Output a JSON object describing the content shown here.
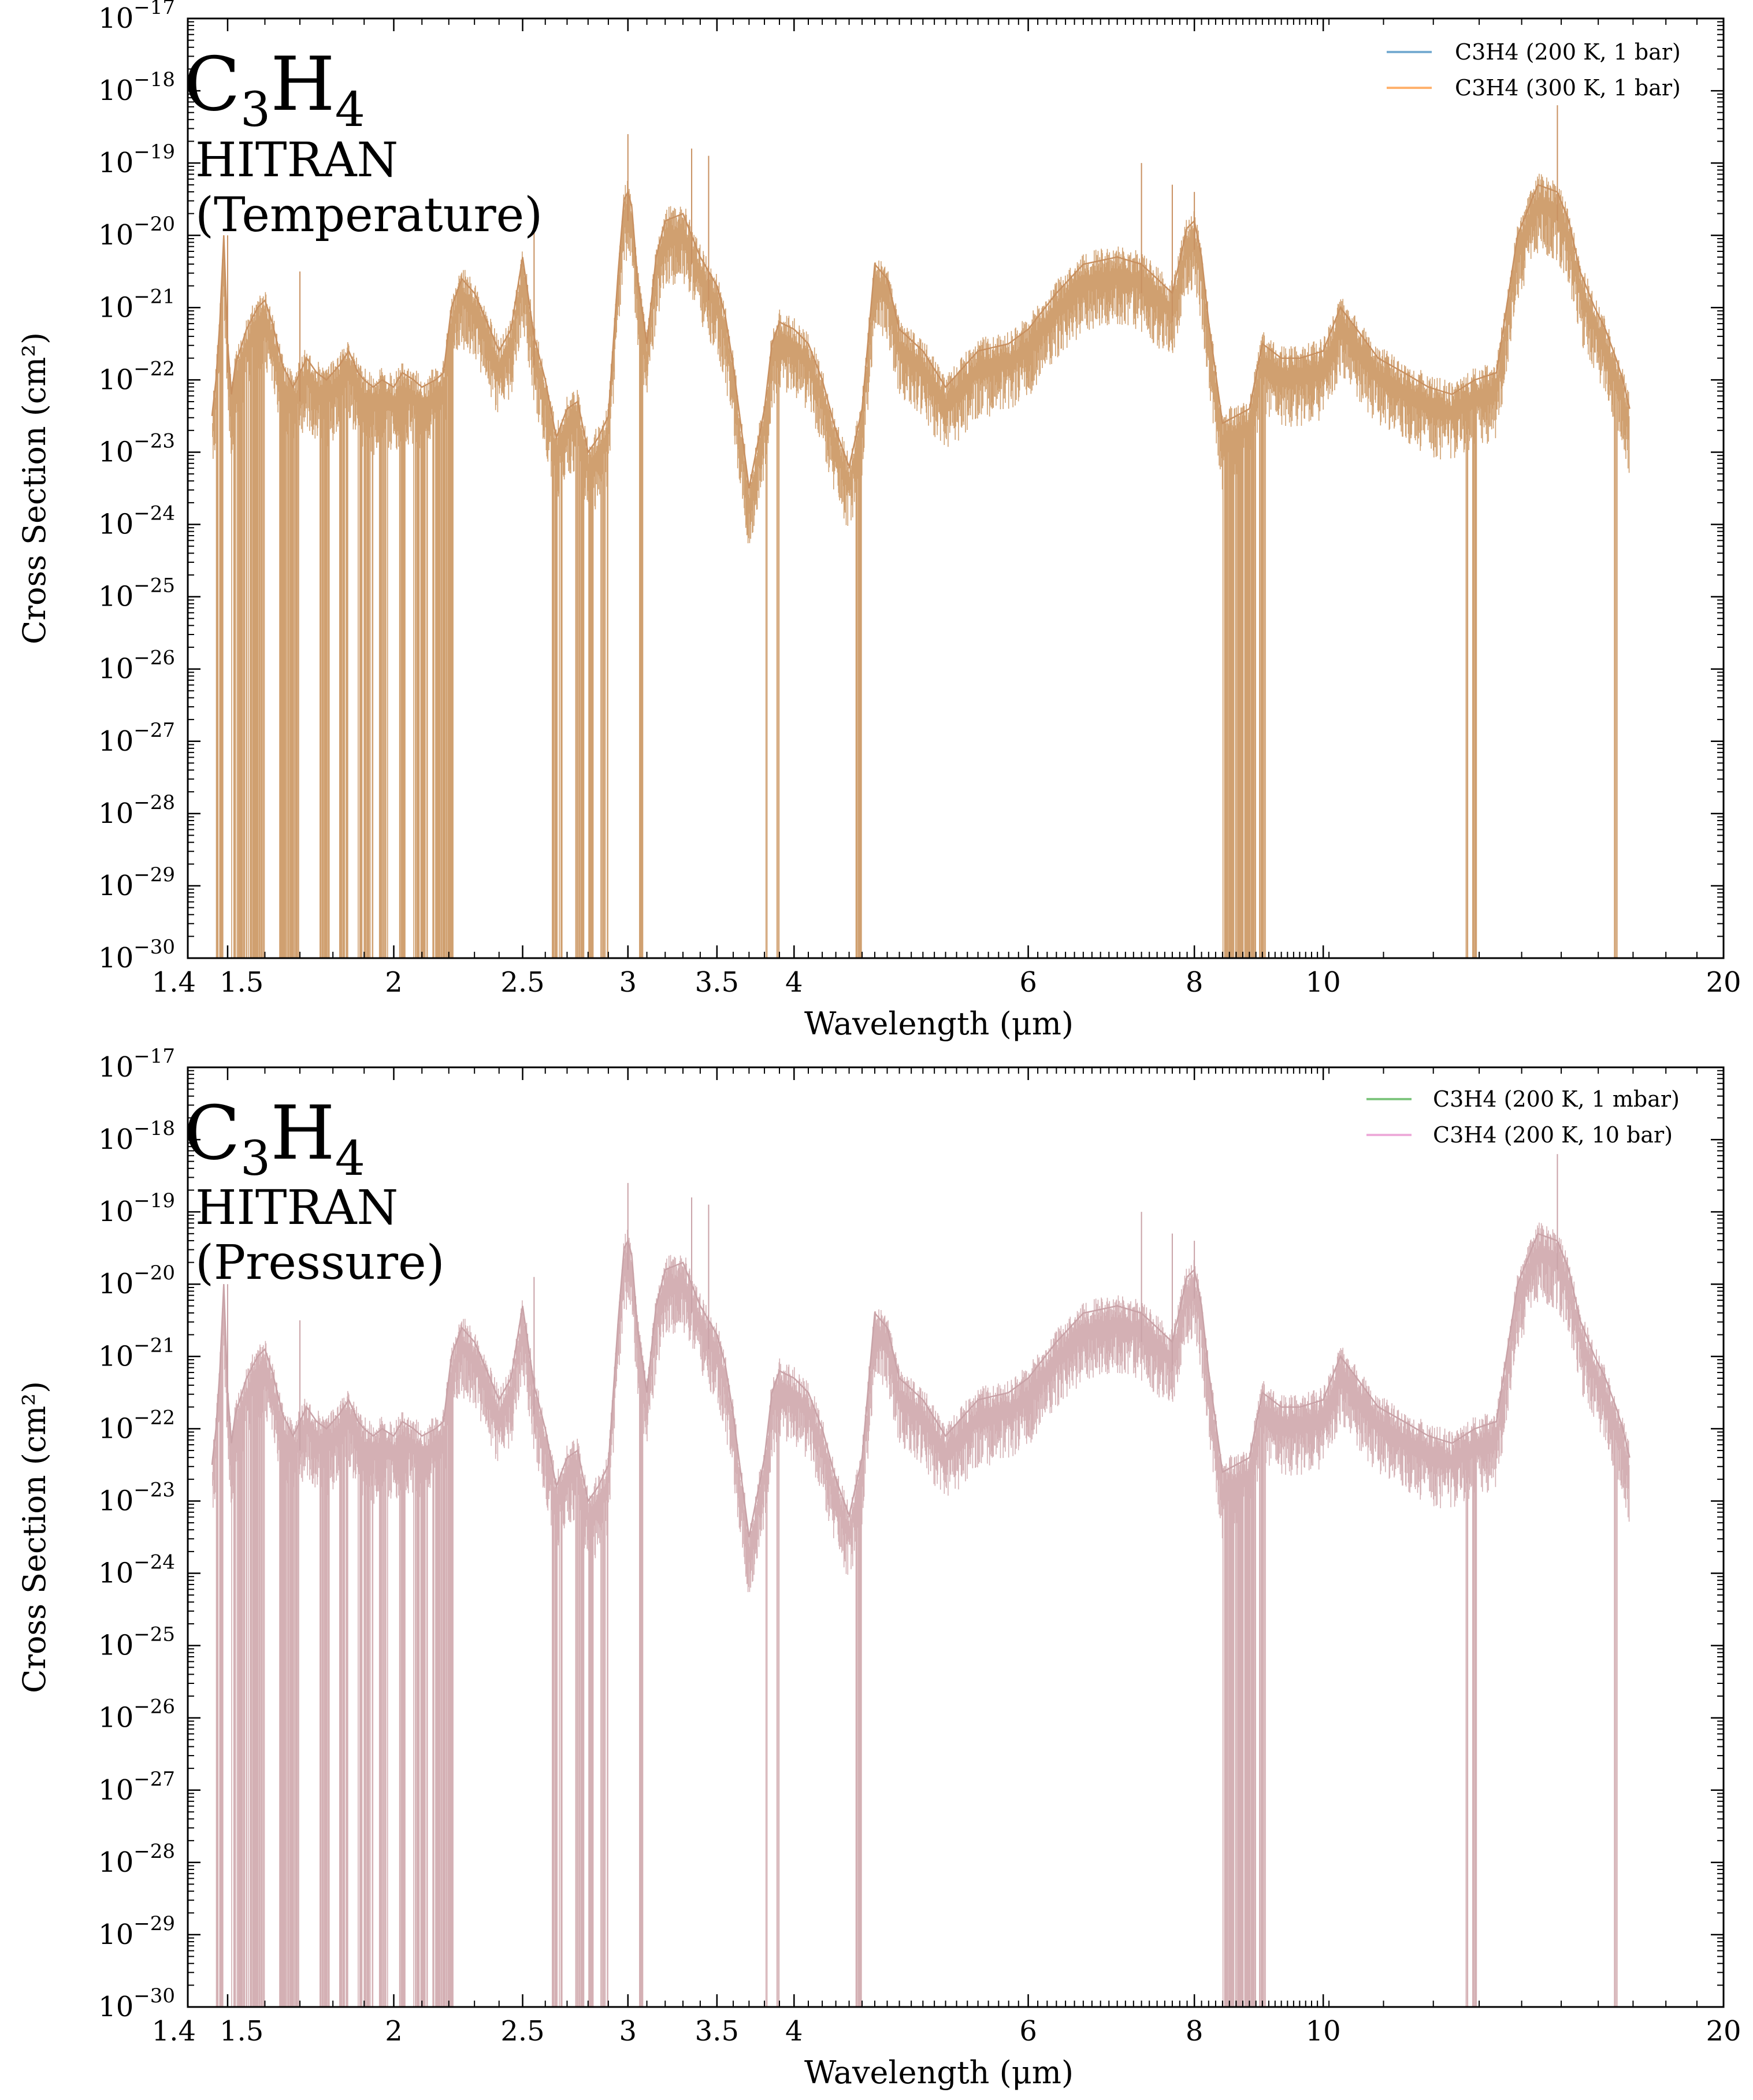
{
  "chart_data": [
    {
      "type": "line",
      "annotation": {
        "molecule_base": "C",
        "subscript_1": "3",
        "molecule_mid": "H",
        "subscript_2": "4",
        "line1": "HITRAN",
        "line2": "(Temperature)"
      },
      "xlabel": "Wavelength (μm)",
      "ylabel": "Cross Section (cm²)",
      "xscale": "log",
      "yscale": "log",
      "xlim": [
        1.4,
        20
      ],
      "ylim": [
        1e-30,
        1e-17
      ],
      "xticks": [
        1.4,
        1.5,
        2,
        2.5,
        3,
        3.5,
        4,
        6,
        8,
        10,
        20
      ],
      "xtick_labels": [
        "1.4",
        "1.5",
        "2",
        "2.5",
        "3",
        "3.5",
        "4",
        "6",
        "8",
        "10",
        "20"
      ],
      "yticks_exp": [
        -30,
        -29,
        -28,
        -27,
        -26,
        -25,
        -24,
        -23,
        -22,
        -21,
        -20,
        -19,
        -18,
        -17
      ],
      "legend_position": "top-right",
      "series": [
        {
          "name": "C3H4 (200 K, 1 bar)",
          "color": "#1f77b4"
        },
        {
          "name": "C3H4 (300 K, 1 bar)",
          "color": "#ff7f0e"
        }
      ],
      "fill_color": "#d0a070",
      "line_color": "#c89060",
      "envelope": {
        "wavelength": [
          1.46,
          1.47,
          1.48,
          1.49,
          1.5,
          1.51,
          1.52,
          1.55,
          1.58,
          1.6,
          1.62,
          1.65,
          1.68,
          1.7,
          1.72,
          1.75,
          1.78,
          1.8,
          1.82,
          1.85,
          1.88,
          1.9,
          1.93,
          1.96,
          2.0,
          2.03,
          2.07,
          2.1,
          2.15,
          2.18,
          2.21,
          2.25,
          2.3,
          2.35,
          2.4,
          2.45,
          2.5,
          2.55,
          2.6,
          2.65,
          2.7,
          2.75,
          2.8,
          2.85,
          2.9,
          2.95,
          2.98,
          3.0,
          3.02,
          3.05,
          3.1,
          3.15,
          3.2,
          3.3,
          3.4,
          3.45,
          3.5,
          3.55,
          3.6,
          3.7,
          3.8,
          3.85,
          3.9,
          4.0,
          4.1,
          4.2,
          4.3,
          4.4,
          4.5,
          4.6,
          4.7,
          4.8,
          5.0,
          5.2,
          5.5,
          5.8,
          6.0,
          6.3,
          6.6,
          7.0,
          7.3,
          7.5,
          7.7,
          7.9,
          8.0,
          8.1,
          8.2,
          8.4,
          8.6,
          8.8,
          9.0,
          9.3,
          9.6,
          10.0,
          10.3,
          10.6,
          11.0,
          11.5,
          12.0,
          12.5,
          13.0,
          13.5,
          14.0,
          14.5,
          15.0,
          15.3,
          15.6,
          16.0,
          16.3,
          16.6,
          16.8,
          17.0
        ],
        "log_sigma": [
          -22.5,
          -22.0,
          -21.2,
          -20.0,
          -21.5,
          -22.2,
          -21.8,
          -21.3,
          -21.0,
          -20.9,
          -21.2,
          -21.8,
          -22.1,
          -21.9,
          -21.7,
          -21.9,
          -22.0,
          -21.9,
          -21.8,
          -21.6,
          -21.9,
          -22.0,
          -22.1,
          -22.0,
          -22.1,
          -21.9,
          -22.0,
          -22.1,
          -22.0,
          -21.9,
          -21.0,
          -20.6,
          -20.8,
          -21.2,
          -21.6,
          -21.3,
          -20.3,
          -21.4,
          -22.0,
          -22.8,
          -22.4,
          -22.3,
          -23.0,
          -22.8,
          -22.5,
          -20.5,
          -19.5,
          -19.4,
          -19.6,
          -20.6,
          -21.5,
          -20.3,
          -19.8,
          -19.7,
          -20.3,
          -20.5,
          -20.7,
          -21.1,
          -21.8,
          -23.5,
          -22.4,
          -21.5,
          -21.2,
          -21.3,
          -21.5,
          -22.0,
          -22.7,
          -23.2,
          -22.4,
          -20.4,
          -20.6,
          -21.3,
          -21.6,
          -22.1,
          -21.6,
          -21.5,
          -21.3,
          -20.8,
          -20.4,
          -20.3,
          -20.4,
          -20.6,
          -20.8,
          -19.9,
          -19.8,
          -20.3,
          -21.2,
          -22.6,
          -22.5,
          -22.4,
          -21.5,
          -21.7,
          -21.7,
          -21.6,
          -21.0,
          -21.3,
          -21.7,
          -21.9,
          -22.1,
          -22.2,
          -22.0,
          -21.9,
          -20.0,
          -19.3,
          -19.4,
          -19.8,
          -20.5,
          -21.0,
          -21.3,
          -21.7,
          -22.0,
          -22.4
        ],
        "deep_bands_um": [
          [
            1.47,
            1.49
          ],
          [
            1.51,
            1.6
          ],
          [
            1.64,
            1.7
          ],
          [
            1.76,
            1.79
          ],
          [
            1.82,
            1.85
          ],
          [
            1.88,
            1.93
          ],
          [
            1.95,
            1.98
          ],
          [
            2.02,
            2.04
          ],
          [
            2.07,
            2.12
          ],
          [
            2.14,
            2.22
          ],
          [
            2.63,
            2.68
          ],
          [
            2.74,
            2.78
          ],
          [
            2.8,
            2.83
          ],
          [
            2.86,
            2.9
          ],
          [
            3.06,
            3.08
          ],
          [
            3.81,
            3.82
          ],
          [
            3.88,
            3.9
          ],
          [
            4.44,
            4.5
          ],
          [
            8.4,
            8.9
          ],
          [
            8.95,
            9.05
          ],
          [
            12.8,
            12.85
          ],
          [
            12.95,
            13.05
          ],
          [
            16.55,
            16.65
          ]
        ],
        "peak_lines": [
          [
            1.5,
            -20.0
          ],
          [
            1.7,
            -20.5
          ],
          [
            2.55,
            -19.9
          ],
          [
            3.0,
            -18.6
          ],
          [
            3.35,
            -18.8
          ],
          [
            3.45,
            -18.9
          ],
          [
            7.3,
            -19.0
          ],
          [
            7.7,
            -19.3
          ],
          [
            8.0,
            -19.4
          ],
          [
            15.0,
            -18.2
          ]
        ]
      }
    },
    {
      "type": "line",
      "annotation": {
        "molecule_base": "C",
        "subscript_1": "3",
        "molecule_mid": "H",
        "subscript_2": "4",
        "line1": "HITRAN",
        "line2": "(Pressure)"
      },
      "xlabel": "Wavelength (μm)",
      "ylabel": "Cross Section (cm²)",
      "xscale": "log",
      "yscale": "log",
      "xlim": [
        1.4,
        20
      ],
      "ylim": [
        1e-30,
        1e-17
      ],
      "xticks": [
        1.4,
        1.5,
        2,
        2.5,
        3,
        3.5,
        4,
        6,
        8,
        10,
        20
      ],
      "xtick_labels": [
        "1.4",
        "1.5",
        "2",
        "2.5",
        "3",
        "3.5",
        "4",
        "6",
        "8",
        "10",
        "20"
      ],
      "yticks_exp": [
        -30,
        -29,
        -28,
        -27,
        -26,
        -25,
        -24,
        -23,
        -22,
        -21,
        -20,
        -19,
        -18,
        -17
      ],
      "legend_position": "top-right",
      "series": [
        {
          "name": "C3H4 (200 K, 1 mbar)",
          "color": "#2ca02c"
        },
        {
          "name": "C3H4 (200 K, 10 bar)",
          "color": "#e377c2"
        }
      ],
      "fill_color": "#d4b0b4",
      "line_color": "#c9a2a7",
      "envelope": "same"
    }
  ]
}
